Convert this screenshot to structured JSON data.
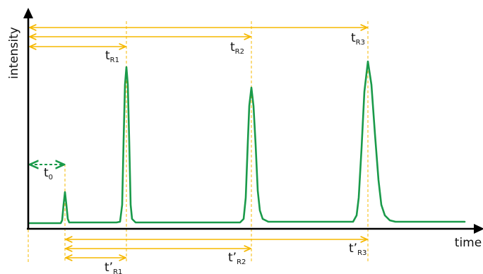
{
  "colors": {
    "axis": "#000000",
    "guide": "#f5b800",
    "signal": "#1a9a4a",
    "dead_time": "#1a9a4a",
    "text": "#111111"
  },
  "axes": {
    "y_label": "intensity",
    "x_label": "time"
  },
  "dead_time": {
    "symbol": "t",
    "subscript": "0"
  },
  "retention_times": [
    {
      "symbol": "t",
      "subscript": "R1"
    },
    {
      "symbol": "t",
      "subscript": "R2"
    },
    {
      "symbol": "t",
      "subscript": "R3"
    }
  ],
  "adjusted_retention_times": [
    {
      "symbol": "t’",
      "subscript": "R1"
    },
    {
      "symbol": "t’",
      "subscript": "R2"
    },
    {
      "symbol": "t’",
      "subscript": "R3"
    }
  ]
}
